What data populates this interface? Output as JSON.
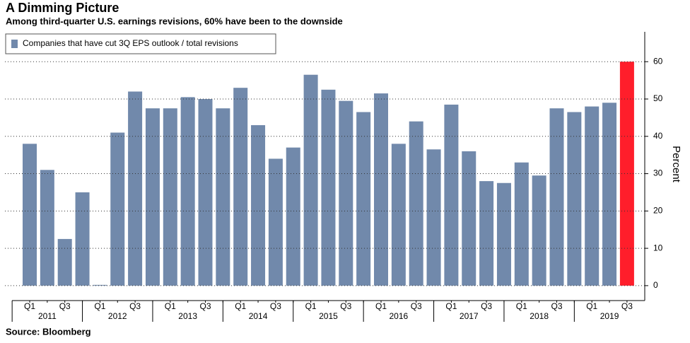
{
  "chart_data": {
    "type": "bar",
    "title": "A Dimming Picture",
    "subtitle": "Among third-quarter U.S. earnings revisions, 60% have been to the downside",
    "source": "Source: Bloomberg",
    "y_axis_label": "Percent",
    "legend_label": "Companies that have cut 3Q EPS outlook / total revisions",
    "categories": [
      "Q1",
      null,
      "Q3",
      null,
      "Q1",
      null,
      "Q3",
      null,
      "Q1",
      null,
      "Q3",
      null,
      "Q1",
      null,
      "Q3",
      null,
      "Q1",
      null,
      "Q3",
      null,
      "Q1",
      null,
      "Q3",
      null,
      "Q1",
      null,
      "Q3",
      null,
      "Q1",
      null,
      "Q3",
      null,
      "Q1",
      null,
      "Q3"
    ],
    "years": [
      "2011",
      "2012",
      "2013",
      "2014",
      "2015",
      "2016",
      "2017",
      "2018",
      "2019"
    ],
    "values": [
      38,
      31,
      12.5,
      25,
      0.2,
      41,
      52,
      47.5,
      47.5,
      50.5,
      50,
      47.5,
      53,
      43,
      34,
      37,
      56.5,
      52.5,
      49.5,
      46.5,
      51.5,
      38,
      44,
      36.5,
      48.5,
      36,
      28,
      27.5,
      33,
      29.5,
      47.5,
      46.5,
      48,
      49,
      60
    ],
    "colors": [
      "#7189ab",
      "#7189ab",
      "#7189ab",
      "#7189ab",
      "#7189ab",
      "#7189ab",
      "#7189ab",
      "#7189ab",
      "#7189ab",
      "#7189ab",
      "#7189ab",
      "#7189ab",
      "#7189ab",
      "#7189ab",
      "#7189ab",
      "#7189ab",
      "#7189ab",
      "#7189ab",
      "#7189ab",
      "#7189ab",
      "#7189ab",
      "#7189ab",
      "#7189ab",
      "#7189ab",
      "#7189ab",
      "#7189ab",
      "#7189ab",
      "#7189ab",
      "#7189ab",
      "#7189ab",
      "#7189ab",
      "#7189ab",
      "#7189ab",
      "#7189ab",
      "#ff1e2b"
    ],
    "legend_color": "#7189ab",
    "ylim": [
      -4,
      68
    ],
    "yticks": [
      0,
      10,
      20,
      30,
      40,
      50,
      60
    ],
    "grid": true
  }
}
